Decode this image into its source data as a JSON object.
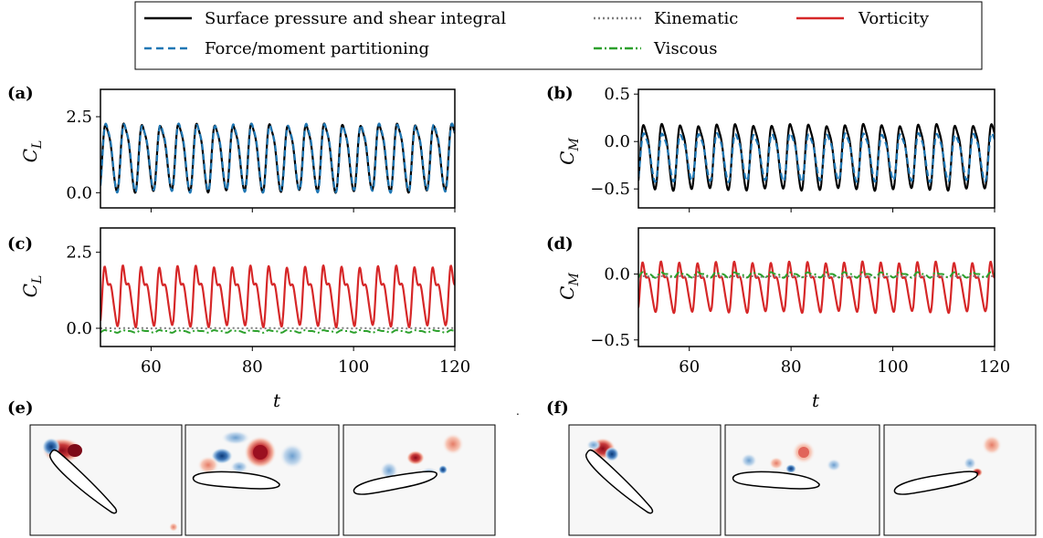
{
  "figure": {
    "legend": {
      "entries": [
        {
          "label": "Surface pressure and shear integral",
          "color": "#000000",
          "dash": "solid"
        },
        {
          "label": "Force/moment partitioning",
          "color": "#1f77b4",
          "dash": "dashed"
        },
        {
          "label": "Kinematic",
          "color": "#7f7f7f",
          "dash": "dotted"
        },
        {
          "label": "Viscous",
          "color": "#2ca02c",
          "dash": "dashdot"
        },
        {
          "label": "Vorticity",
          "color": "#d62728",
          "dash": "solid"
        }
      ]
    },
    "panel_letters": {
      "a": "(a)",
      "b": "(b)",
      "c": "(c)",
      "d": "(d)",
      "e": "(e)",
      "f": "(f)"
    },
    "axis_labels": {
      "cl": "C",
      "cl_sub": "L",
      "cm": "C",
      "cm_sub": "M",
      "t": "t"
    }
  },
  "chart_data": [
    {
      "panel": "a",
      "type": "line",
      "xlim": [
        50,
        120
      ],
      "ylim": [
        -0.5,
        3.4
      ],
      "yticks": [
        0.0,
        2.5
      ],
      "ytick_labels": [
        "0.0",
        "2.5"
      ],
      "xtick_labels_shown": false,
      "ylabel": "C_L",
      "series": [
        {
          "legend": "Surface pressure and shear integral",
          "period": 3.6,
          "mean": 1.15,
          "amp": 1.25,
          "min": -0.1,
          "max": 2.55
        },
        {
          "legend": "Force/moment partitioning",
          "period": 3.6,
          "mean": 1.18,
          "amp": 1.28,
          "min": -0.1,
          "max": 2.55
        }
      ]
    },
    {
      "panel": "b",
      "type": "line",
      "xlim": [
        50,
        120
      ],
      "ylim": [
        -0.7,
        0.55
      ],
      "yticks": [
        -0.5,
        0.0,
        0.5
      ],
      "ytick_labels": [
        "−0.5",
        "0.0",
        "0.5"
      ],
      "xtick_labels_shown": false,
      "ylabel": "C_M",
      "series": [
        {
          "legend": "Surface pressure and shear integral",
          "period": 3.6,
          "mean": -0.15,
          "amp": 0.37,
          "min": -0.55,
          "max": 0.27
        },
        {
          "legend": "Force/moment partitioning",
          "period": 3.6,
          "mean": -0.12,
          "amp": 0.27,
          "min": -0.45,
          "max": 0.15
        }
      ]
    },
    {
      "panel": "c",
      "type": "line",
      "xlim": [
        50,
        120
      ],
      "ylim": [
        -0.6,
        3.3
      ],
      "yticks": [
        0.0,
        2.5
      ],
      "ytick_labels": [
        "0.0",
        "2.5"
      ],
      "xticks": [
        60,
        80,
        100,
        120
      ],
      "xtick_labels": [
        "60",
        "80",
        "100",
        "120"
      ],
      "ylabel": "C_L",
      "xlabel": "t",
      "series": [
        {
          "legend": "Vorticity",
          "period": 3.6,
          "min": -0.15,
          "max": 2.35
        },
        {
          "legend": "Kinematic",
          "period": 3.6,
          "mean": 0.0,
          "amp": 0.01
        },
        {
          "legend": "Viscous",
          "period": 3.6,
          "min": -0.15,
          "max": -0.05
        }
      ]
    },
    {
      "panel": "d",
      "type": "line",
      "xlim": [
        50,
        120
      ],
      "ylim": [
        -0.55,
        0.35
      ],
      "yticks": [
        -0.5,
        0.0
      ],
      "ytick_labels": [
        "−0.5",
        "0.0"
      ],
      "xticks": [
        60,
        80,
        100,
        120
      ],
      "xtick_labels": [
        "60",
        "80",
        "100",
        "120"
      ],
      "ylabel": "C_M",
      "xlabel": "t",
      "series": [
        {
          "legend": "Vorticity",
          "period": 3.6,
          "min": -0.33,
          "max": 0.15
        },
        {
          "legend": "Kinematic",
          "period": 3.6,
          "mean": -0.02,
          "amp": 0.005
        },
        {
          "legend": "Viscous",
          "period": 3.6,
          "min": -0.03,
          "max": 0.02
        }
      ]
    }
  ]
}
